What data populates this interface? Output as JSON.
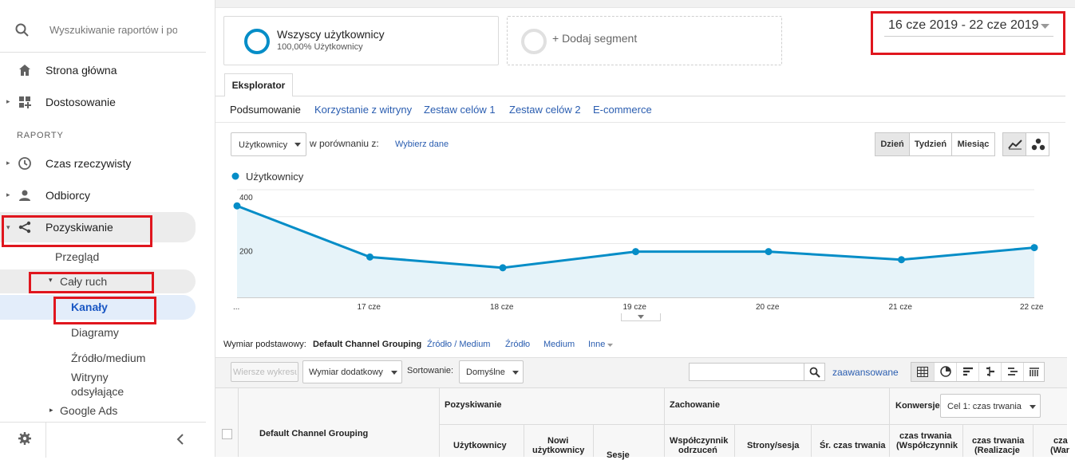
{
  "sidebar": {
    "search_placeholder": "Wyszukiwanie raportów i po",
    "home": "Strona główna",
    "customize": "Dostosowanie",
    "section": "RAPORTY",
    "realtime": "Czas rzeczywisty",
    "audience": "Odbiorcy",
    "acquisition": "Pozyskiwanie",
    "overview": "Przegląd",
    "all_traffic": "Cały ruch",
    "channels": "Kanały",
    "treemaps": "Diagramy",
    "source_medium": "Źródło/medium",
    "referrals_1": "Witryny",
    "referrals_2": "odsyłające",
    "google_ads": "Google Ads"
  },
  "segments": {
    "all_users": "Wszyscy użytkownicy",
    "all_users_pct": "100,00% Użytkownicy",
    "add_segment": "+ Dodaj segment"
  },
  "date_range": "16 cze 2019 - 22 cze 2019",
  "tabs": {
    "explorer": "Eksplorator"
  },
  "subtabs": [
    "Podsumowanie",
    "Korzystanie z witryny",
    "Zestaw celów 1",
    "Zestaw celów 2",
    "E-commerce"
  ],
  "metric_select": "Użytkownicy",
  "compare_label": "w porównaniu z:",
  "choose_metric": "Wybierz dane",
  "granularity": [
    "Dzień",
    "Tydzień",
    "Miesiąc"
  ],
  "chart_data": {
    "type": "line",
    "series": [
      {
        "name": "Użytkownicy",
        "values": [
          340,
          150,
          110,
          170,
          170,
          140,
          185
        ]
      }
    ],
    "categories": [
      "...",
      "17 cze",
      "18 cze",
      "19 cze",
      "20 cze",
      "21 cze",
      "22 cze"
    ],
    "yticks": [
      400,
      200
    ],
    "ylim": [
      0,
      400
    ],
    "color": "#058dc7",
    "fill": "#e6f3f9",
    "grid": true,
    "legend": "top-left"
  },
  "dimension": {
    "label": "Wymiar podstawowy:",
    "active": "Default Channel Grouping",
    "links": [
      "Źródło / Medium",
      "Źródło",
      "Medium",
      "Inne"
    ]
  },
  "table_controls": {
    "plot_rows": "Wiersze wykresu",
    "secondary_dim": "Wymiar dodatkowy",
    "sort_label": "Sortowanie:",
    "sort_value": "Domyślne",
    "advanced": "zaawansowane"
  },
  "table": {
    "dim_header": "Default Channel Grouping",
    "group_acq": "Pozyskiwanie",
    "group_beh": "Zachowanie",
    "group_conv": "Konwersje",
    "goal_select": "Cel 1: czas trwania",
    "col_users": "Użytkownicy",
    "col_new_1": "Nowi",
    "col_new_2": "użytkownicy",
    "col_sessions": "Sesje",
    "col_bounce_1": "Współczynnik",
    "col_bounce_2": "odrzuceń",
    "col_pps": "Strony/sesja",
    "col_avg": "Śr. czas trwania",
    "col_conv1_1": "czas trwania",
    "col_conv1_2": "(Współczynnik",
    "col_conv2_1": "czas trwania",
    "col_conv2_2": "(Realizacje",
    "col_conv3_1": "cza",
    "col_conv3_2": "(War"
  }
}
